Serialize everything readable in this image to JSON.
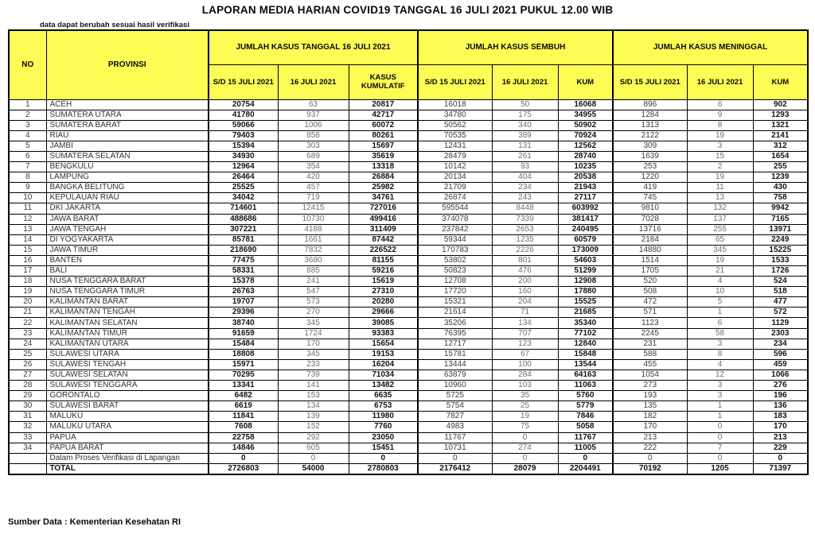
{
  "title": "LAPORAN MEDIA HARIAN COVID19 TANGGAL 16 JULI 2021 PUKUL 12.00 WIB",
  "subtitle": "data dapat berubah sesuai hasil verifikasi",
  "source": "Sumber Data : Kementerian Kesehatan RI",
  "colors": {
    "header_bg": "#FCFC55",
    "border": "#000000",
    "muted_text": "#6e6e6e"
  },
  "table": {
    "header": {
      "no": "NO",
      "provinsi": "PROVINSI",
      "groups": [
        {
          "label": "JUMLAH KASUS TANGGAL 16 JULI 2021",
          "sub": [
            "S/D 15 JULI 2021",
            "16 JULI 2021",
            "KASUS KUMULATIF"
          ]
        },
        {
          "label": "JUMLAH KASUS SEMBUH",
          "sub": [
            "S/D 15 JULI 2021",
            "16 JULI 2021",
            "KUM"
          ]
        },
        {
          "label": "JUMLAH KASUS MENINGGAL",
          "sub": [
            "S/D 15 JULI 2021",
            "16 JULI 2021",
            "KUM"
          ]
        }
      ]
    },
    "rows": [
      {
        "no": "1",
        "provinsi": "ACEH",
        "values": [
          "20754",
          "63",
          "20817",
          "16018",
          "50",
          "16068",
          "896",
          "6",
          "902"
        ]
      },
      {
        "no": "2",
        "provinsi": "SUMATERA UTARA",
        "values": [
          "41780",
          "937",
          "42717",
          "34780",
          "175",
          "34955",
          "1284",
          "9",
          "1293"
        ]
      },
      {
        "no": "3",
        "provinsi": "SUMATERA BARAT",
        "values": [
          "59066",
          "1006",
          "60072",
          "50562",
          "340",
          "50902",
          "1313",
          "8",
          "1321"
        ]
      },
      {
        "no": "4",
        "provinsi": "RIAU",
        "values": [
          "79403",
          "858",
          "80261",
          "70535",
          "389",
          "70924",
          "2122",
          "19",
          "2141"
        ]
      },
      {
        "no": "5",
        "provinsi": "JAMBI",
        "values": [
          "15394",
          "303",
          "15697",
          "12431",
          "131",
          "12562",
          "309",
          "3",
          "312"
        ]
      },
      {
        "no": "6",
        "provinsi": "SUMATERA SELATAN",
        "values": [
          "34930",
          "689",
          "35619",
          "28479",
          "261",
          "28740",
          "1639",
          "15",
          "1654"
        ]
      },
      {
        "no": "7",
        "provinsi": "BENGKULU",
        "values": [
          "12964",
          "354",
          "13318",
          "10142",
          "93",
          "10235",
          "253",
          "2",
          "255"
        ]
      },
      {
        "no": "8",
        "provinsi": "LAMPUNG",
        "values": [
          "26464",
          "420",
          "26884",
          "20134",
          "404",
          "20538",
          "1220",
          "19",
          "1239"
        ]
      },
      {
        "no": "9",
        "provinsi": "BANGKA BELITUNG",
        "values": [
          "25525",
          "457",
          "25982",
          "21709",
          "234",
          "21943",
          "419",
          "11",
          "430"
        ]
      },
      {
        "no": "10",
        "provinsi": "KEPULAUAN RIAU",
        "values": [
          "34042",
          "719",
          "34761",
          "26874",
          "243",
          "27117",
          "745",
          "13",
          "758"
        ]
      },
      {
        "no": "11",
        "provinsi": "DKI JAKARTA",
        "values": [
          "714601",
          "12415",
          "727016",
          "595544",
          "8448",
          "603992",
          "9810",
          "132",
          "9942"
        ]
      },
      {
        "no": "12",
        "provinsi": "JAWA BARAT",
        "values": [
          "488686",
          "10730",
          "499416",
          "374078",
          "7339",
          "381417",
          "7028",
          "137",
          "7165"
        ]
      },
      {
        "no": "13",
        "provinsi": "JAWA TENGAH",
        "values": [
          "307221",
          "4188",
          "311409",
          "237842",
          "2653",
          "240495",
          "13716",
          "255",
          "13971"
        ]
      },
      {
        "no": "14",
        "provinsi": "DI YOGYAKARTA",
        "values": [
          "85781",
          "1661",
          "87442",
          "59344",
          "1235",
          "60579",
          "2184",
          "65",
          "2249"
        ]
      },
      {
        "no": "15",
        "provinsi": "JAWA TIMUR",
        "values": [
          "218690",
          "7832",
          "226522",
          "170783",
          "2226",
          "173009",
          "14880",
          "345",
          "15225"
        ]
      },
      {
        "no": "16",
        "provinsi": "BANTEN",
        "values": [
          "77475",
          "3680",
          "81155",
          "53802",
          "801",
          "54603",
          "1514",
          "19",
          "1533"
        ]
      },
      {
        "no": "17",
        "provinsi": "BALI",
        "values": [
          "58331",
          "885",
          "59216",
          "50823",
          "476",
          "51299",
          "1705",
          "21",
          "1726"
        ]
      },
      {
        "no": "18",
        "provinsi": "NUSA TENGGARA BARAT",
        "values": [
          "15378",
          "241",
          "15619",
          "12708",
          "200",
          "12908",
          "520",
          "4",
          "524"
        ]
      },
      {
        "no": "19",
        "provinsi": "NUSA TENGGARA TIMUR",
        "values": [
          "26763",
          "547",
          "27310",
          "17720",
          "160",
          "17880",
          "508",
          "10",
          "518"
        ]
      },
      {
        "no": "20",
        "provinsi": "KALIMANTAN BARAT",
        "values": [
          "19707",
          "573",
          "20280",
          "15321",
          "204",
          "15525",
          "472",
          "5",
          "477"
        ]
      },
      {
        "no": "21",
        "provinsi": "KALIMANTAN TENGAH",
        "values": [
          "29396",
          "270",
          "29666",
          "21614",
          "71",
          "21685",
          "571",
          "1",
          "572"
        ]
      },
      {
        "no": "22",
        "provinsi": "KALIMANTAN SELATAN",
        "values": [
          "38740",
          "345",
          "39085",
          "35206",
          "134",
          "35340",
          "1123",
          "6",
          "1129"
        ]
      },
      {
        "no": "23",
        "provinsi": "KALIMANTAN TIMUR",
        "values": [
          "91659",
          "1724",
          "93383",
          "76395",
          "707",
          "77102",
          "2245",
          "58",
          "2303"
        ]
      },
      {
        "no": "24",
        "provinsi": "KALIMANTAN UTARA",
        "values": [
          "15484",
          "170",
          "15654",
          "12717",
          "123",
          "12840",
          "231",
          "3",
          "234"
        ]
      },
      {
        "no": "25",
        "provinsi": "SULAWESI UTARA",
        "values": [
          "18808",
          "345",
          "19153",
          "15781",
          "67",
          "15848",
          "588",
          "8",
          "596"
        ]
      },
      {
        "no": "26",
        "provinsi": "SULAWESI TENGAH",
        "values": [
          "15971",
          "233",
          "16204",
          "13444",
          "100",
          "13544",
          "455",
          "4",
          "459"
        ]
      },
      {
        "no": "27",
        "provinsi": "SULAWESI SELATAN",
        "values": [
          "70295",
          "739",
          "71034",
          "63879",
          "284",
          "64163",
          "1054",
          "12",
          "1066"
        ]
      },
      {
        "no": "28",
        "provinsi": "SULAWESI TENGGARA",
        "values": [
          "13341",
          "141",
          "13482",
          "10960",
          "103",
          "11063",
          "273",
          "3",
          "276"
        ]
      },
      {
        "no": "29",
        "provinsi": "GORONTALO",
        "values": [
          "6482",
          "153",
          "6635",
          "5725",
          "35",
          "5760",
          "193",
          "3",
          "196"
        ]
      },
      {
        "no": "30",
        "provinsi": "SULAWESI BARAT",
        "values": [
          "6619",
          "134",
          "6753",
          "5754",
          "25",
          "5779",
          "135",
          "1",
          "136"
        ]
      },
      {
        "no": "31",
        "provinsi": "MALUKU",
        "values": [
          "11841",
          "139",
          "11980",
          "7827",
          "19",
          "7846",
          "182",
          "1",
          "183"
        ]
      },
      {
        "no": "32",
        "provinsi": "MALUKU UTARA",
        "values": [
          "7608",
          "152",
          "7760",
          "4983",
          "75",
          "5058",
          "170",
          "0",
          "170"
        ]
      },
      {
        "no": "33",
        "provinsi": "PAPUA",
        "values": [
          "22758",
          "292",
          "23050",
          "11767",
          "0",
          "11767",
          "213",
          "0",
          "213"
        ]
      },
      {
        "no": "34",
        "provinsi": "PAPUA BARAT",
        "values": [
          "14846",
          "605",
          "15451",
          "10731",
          "274",
          "11005",
          "222",
          "7",
          "229"
        ]
      }
    ],
    "verification_row": {
      "no": "",
      "provinsi": "Dalam Proses Verifikasi di Lapangan",
      "values": [
        "0",
        "0",
        "0",
        "0",
        "0",
        "0",
        "0",
        "0",
        "0"
      ]
    },
    "total_row": {
      "no": "",
      "provinsi": "TOTAL",
      "values": [
        "2726803",
        "54000",
        "2780803",
        "2176412",
        "28079",
        "2204491",
        "70192",
        "1205",
        "71397"
      ]
    }
  }
}
